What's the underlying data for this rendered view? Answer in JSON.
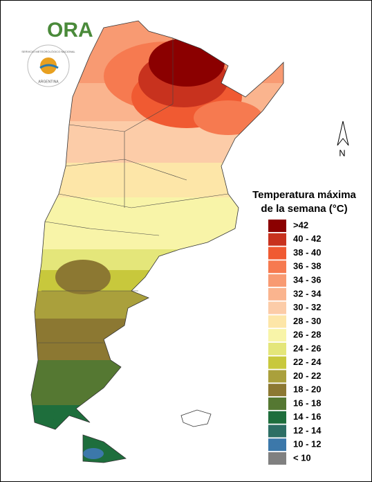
{
  "logo": {
    "brand": "ORA",
    "agency": "SERVICIO METEOROLÓGICO NACIONAL",
    "country": "ARGENTINA"
  },
  "north_arrow": "N",
  "legend": {
    "title_lines": [
      "Temperatura máxima",
      "de la semana (°C)"
    ],
    "items": [
      {
        "label": ">42",
        "color": "#8b0000"
      },
      {
        "label": "40 - 42",
        "color": "#c8321e"
      },
      {
        "label": "38 - 40",
        "color": "#f05a32"
      },
      {
        "label": "36 - 38",
        "color": "#f67a50"
      },
      {
        "label": "34 - 36",
        "color": "#f89a72"
      },
      {
        "label": "32 - 34",
        "color": "#fab48e"
      },
      {
        "label": "30 - 32",
        "color": "#fccca8"
      },
      {
        "label": "28 - 30",
        "color": "#fde6a8"
      },
      {
        "label": "26 - 28",
        "color": "#f8f4a8"
      },
      {
        "label": "24 - 26",
        "color": "#e4e67a"
      },
      {
        "label": "22 - 24",
        "color": "#c8c83c"
      },
      {
        "label": "20 - 22",
        "color": "#aaa03c"
      },
      {
        "label": "18 - 20",
        "color": "#8c7832"
      },
      {
        "label": "16 - 18",
        "color": "#557832"
      },
      {
        "label": "14 - 16",
        "color": "#1e6e3c"
      },
      {
        "label": "12 - 14",
        "color": "#2d6e64"
      },
      {
        "label": "10 - 12",
        "color": "#3c78aa"
      },
      {
        "label": "< 10",
        "color": "#808080"
      }
    ]
  }
}
